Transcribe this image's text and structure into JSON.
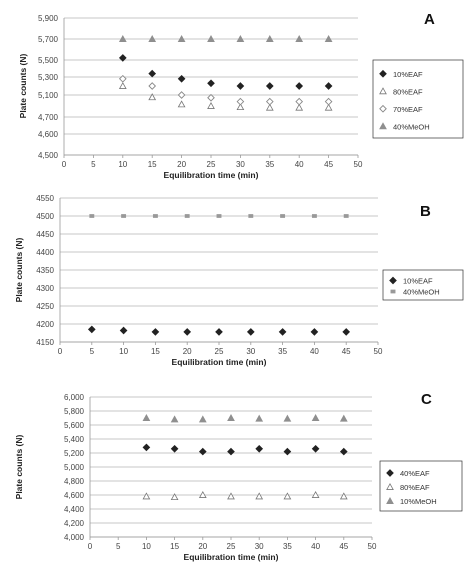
{
  "chart_data": [
    {
      "type": "scatter",
      "panel_label": "A",
      "xlabel": "Equilibration time (min)",
      "ylabel": "Plate counts (N)",
      "xlim": [
        0,
        50
      ],
      "ylim": [
        4500,
        5900
      ],
      "x_ticks": [
        "0",
        "5",
        "10",
        "15",
        "20",
        "25",
        "30",
        "35",
        "40",
        "45",
        "50"
      ],
      "y_ticks": [
        "4,500",
        "4,600",
        "4,700",
        "5,100",
        "5,300",
        "5,500",
        "5,700",
        "5,900"
      ],
      "grid": "horizontal",
      "legend_position": "right",
      "series": [
        {
          "name": "10%EAF",
          "marker": "filled-diamond",
          "color": "#222222",
          "x": [
            10,
            15,
            20,
            25,
            30,
            35,
            40,
            45
          ],
          "y": [
            5520,
            5340,
            5280,
            5230,
            5200,
            5200,
            5200,
            5200
          ]
        },
        {
          "name": "80%EAF",
          "marker": "open-triangle",
          "color": "#777777",
          "x": [
            10,
            15,
            20,
            25,
            30,
            35,
            40,
            45
          ],
          "y": [
            5200,
            5060,
            4930,
            4900,
            4880,
            4870,
            4870,
            4870
          ]
        },
        {
          "name": "70%EAF",
          "marker": "open-diamond",
          "color": "#888888",
          "x": [
            10,
            15,
            20,
            25,
            30,
            35,
            40,
            45
          ],
          "y": [
            5280,
            5200,
            5100,
            5050,
            4980,
            4980,
            4980,
            4980
          ]
        },
        {
          "name": "40%MeOH",
          "marker": "filled-triangle",
          "color": "#8f8f8f",
          "x": [
            10,
            15,
            20,
            25,
            30,
            35,
            40,
            45
          ],
          "y": [
            5700,
            5700,
            5700,
            5700,
            5700,
            5700,
            5700,
            5700
          ]
        }
      ]
    },
    {
      "type": "scatter",
      "panel_label": "B",
      "xlabel": "Equilibration time (min)",
      "ylabel": "Plate counts (N)",
      "xlim": [
        0,
        50
      ],
      "ylim": [
        4150,
        4550
      ],
      "x_ticks": [
        "0",
        "5",
        "10",
        "15",
        "20",
        "25",
        "30",
        "35",
        "40",
        "45",
        "50"
      ],
      "y_ticks": [
        "4150",
        "4200",
        "4250",
        "4300",
        "4350",
        "4400",
        "4450",
        "4500",
        "4550"
      ],
      "grid": "horizontal",
      "legend_position": "right",
      "series": [
        {
          "name": "10%EAF",
          "marker": "filled-diamond",
          "color": "#222222",
          "x": [
            5,
            10,
            15,
            20,
            25,
            30,
            35,
            40,
            45
          ],
          "y": [
            4185,
            4182,
            4178,
            4178,
            4178,
            4178,
            4178,
            4178,
            4178
          ]
        },
        {
          "name": "40%MeOH",
          "marker": "filled-square",
          "color": "#999999",
          "x": [
            5,
            10,
            15,
            20,
            25,
            30,
            35,
            40,
            45
          ],
          "y": [
            4500,
            4500,
            4500,
            4500,
            4500,
            4500,
            4500,
            4500,
            4500
          ]
        }
      ]
    },
    {
      "type": "scatter",
      "panel_label": "C",
      "xlabel": "Equilibration time (min)",
      "ylabel": "Plate counts (N)",
      "xlim": [
        0,
        50
      ],
      "ylim": [
        4000,
        6000
      ],
      "x_ticks": [
        "0",
        "5",
        "10",
        "15",
        "20",
        "25",
        "30",
        "35",
        "40",
        "45",
        "50"
      ],
      "y_ticks": [
        "4,000",
        "4,200",
        "4,400",
        "4,600",
        "4,800",
        "5,000",
        "5,200",
        "5,400",
        "5,600",
        "5,800",
        "6,000"
      ],
      "grid": "horizontal",
      "legend_position": "right",
      "series": [
        {
          "name": "40%EAF",
          "marker": "filled-diamond",
          "color": "#222222",
          "x": [
            10,
            15,
            20,
            25,
            30,
            35,
            40,
            45
          ],
          "y": [
            5280,
            5260,
            5220,
            5220,
            5260,
            5220,
            5260,
            5220
          ]
        },
        {
          "name": "80%EAF",
          "marker": "open-triangle",
          "color": "#777777",
          "x": [
            10,
            15,
            20,
            25,
            30,
            35,
            40,
            45
          ],
          "y": [
            4580,
            4570,
            4600,
            4580,
            4580,
            4580,
            4600,
            4580
          ]
        },
        {
          "name": "10%MeOH",
          "marker": "filled-triangle",
          "color": "#8f8f8f",
          "x": [
            10,
            15,
            20,
            25,
            30,
            35,
            40,
            45
          ],
          "y": [
            5700,
            5680,
            5680,
            5700,
            5690,
            5690,
            5700,
            5690
          ]
        }
      ]
    }
  ]
}
